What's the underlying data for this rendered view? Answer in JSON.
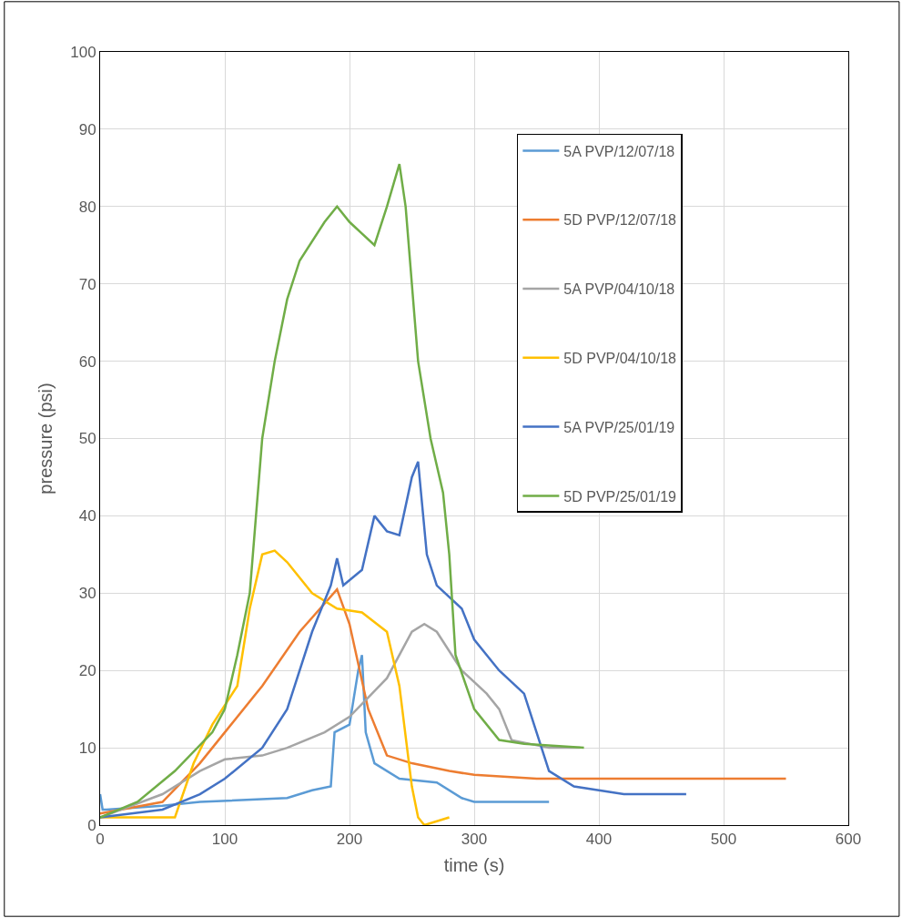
{
  "chart_data": {
    "type": "line",
    "xlabel": "time (s)",
    "ylabel": "pressure (psi)",
    "xlim": [
      0,
      600
    ],
    "xticks": [
      0,
      100,
      200,
      300,
      400,
      500,
      600
    ],
    "ylim": [
      0,
      100
    ],
    "yticks": [
      0,
      10,
      20,
      30,
      40,
      50,
      60,
      70,
      80,
      90,
      100
    ],
    "grid": true,
    "legend": "top right",
    "marker": "none",
    "line_style": "solid",
    "series": [
      {
        "name": "5A PVP/12/07/18",
        "color": "#5b9bd5",
        "x": [
          0,
          2,
          5,
          50,
          80,
          150,
          170,
          185,
          188,
          200,
          207,
          210,
          213,
          220,
          240,
          270,
          290,
          300,
          360
        ],
        "values": [
          4,
          2,
          2,
          2.5,
          3,
          3.5,
          4.5,
          5,
          12,
          13,
          20,
          22,
          12,
          8,
          6,
          5.5,
          3.5,
          3,
          3
        ]
      },
      {
        "name": "5D PVP/12/07/18",
        "color": "#ed7d31",
        "x": [
          0,
          50,
          80,
          100,
          130,
          160,
          190,
          200,
          215,
          230,
          250,
          280,
          300,
          350,
          400,
          500,
          550
        ],
        "values": [
          1.5,
          3,
          8,
          12,
          18,
          25,
          30.5,
          26,
          15,
          9,
          8,
          7,
          6.5,
          6,
          6,
          6,
          6
        ]
      },
      {
        "name": "5A PVP/04/10/18",
        "color": "#a5a5a5",
        "x": [
          0,
          50,
          80,
          100,
          130,
          150,
          180,
          200,
          230,
          250,
          260,
          270,
          290,
          310,
          320,
          330,
          360,
          380,
          385
        ],
        "values": [
          1,
          4,
          7,
          8.5,
          9,
          10,
          12,
          14,
          19,
          25,
          26,
          25,
          20,
          17,
          15,
          11,
          10,
          10,
          10
        ]
      },
      {
        "name": "5D PVP/04/10/18",
        "color": "#ffc000",
        "x": [
          0,
          60,
          75,
          90,
          110,
          120,
          130,
          140,
          150,
          170,
          190,
          210,
          230,
          240,
          250,
          255,
          260,
          270,
          280
        ],
        "values": [
          1,
          1,
          8,
          13,
          18,
          28,
          35,
          35.5,
          34,
          30,
          28,
          27.5,
          25,
          18,
          5,
          1,
          0,
          0.5,
          1
        ]
      },
      {
        "name": "5A PVP/25/01/19",
        "color": "#4472c4",
        "x": [
          0,
          50,
          80,
          100,
          130,
          150,
          170,
          185,
          190,
          195,
          210,
          220,
          230,
          240,
          250,
          255,
          262,
          270,
          290,
          300,
          320,
          340,
          350,
          360,
          380,
          420,
          470
        ],
        "values": [
          1,
          2,
          4,
          6,
          10,
          15,
          25,
          31,
          34.5,
          31,
          33,
          40,
          38,
          37.5,
          45,
          47,
          35,
          31,
          28,
          24,
          20,
          17,
          12,
          7,
          5,
          4,
          4
        ]
      },
      {
        "name": "5D PVP/25/01/19",
        "color": "#70ad47",
        "x": [
          0,
          30,
          60,
          90,
          100,
          110,
          120,
          125,
          130,
          140,
          150,
          160,
          180,
          190,
          200,
          220,
          230,
          240,
          245,
          255,
          265,
          275,
          280,
          285,
          300,
          320,
          340,
          388
        ],
        "values": [
          1,
          3,
          7,
          12,
          15,
          22,
          30,
          40,
          50,
          60,
          68,
          73,
          78,
          80,
          78,
          75,
          80,
          85.5,
          80,
          60,
          50,
          43,
          35,
          22,
          15,
          11,
          10.5,
          10
        ]
      }
    ]
  }
}
